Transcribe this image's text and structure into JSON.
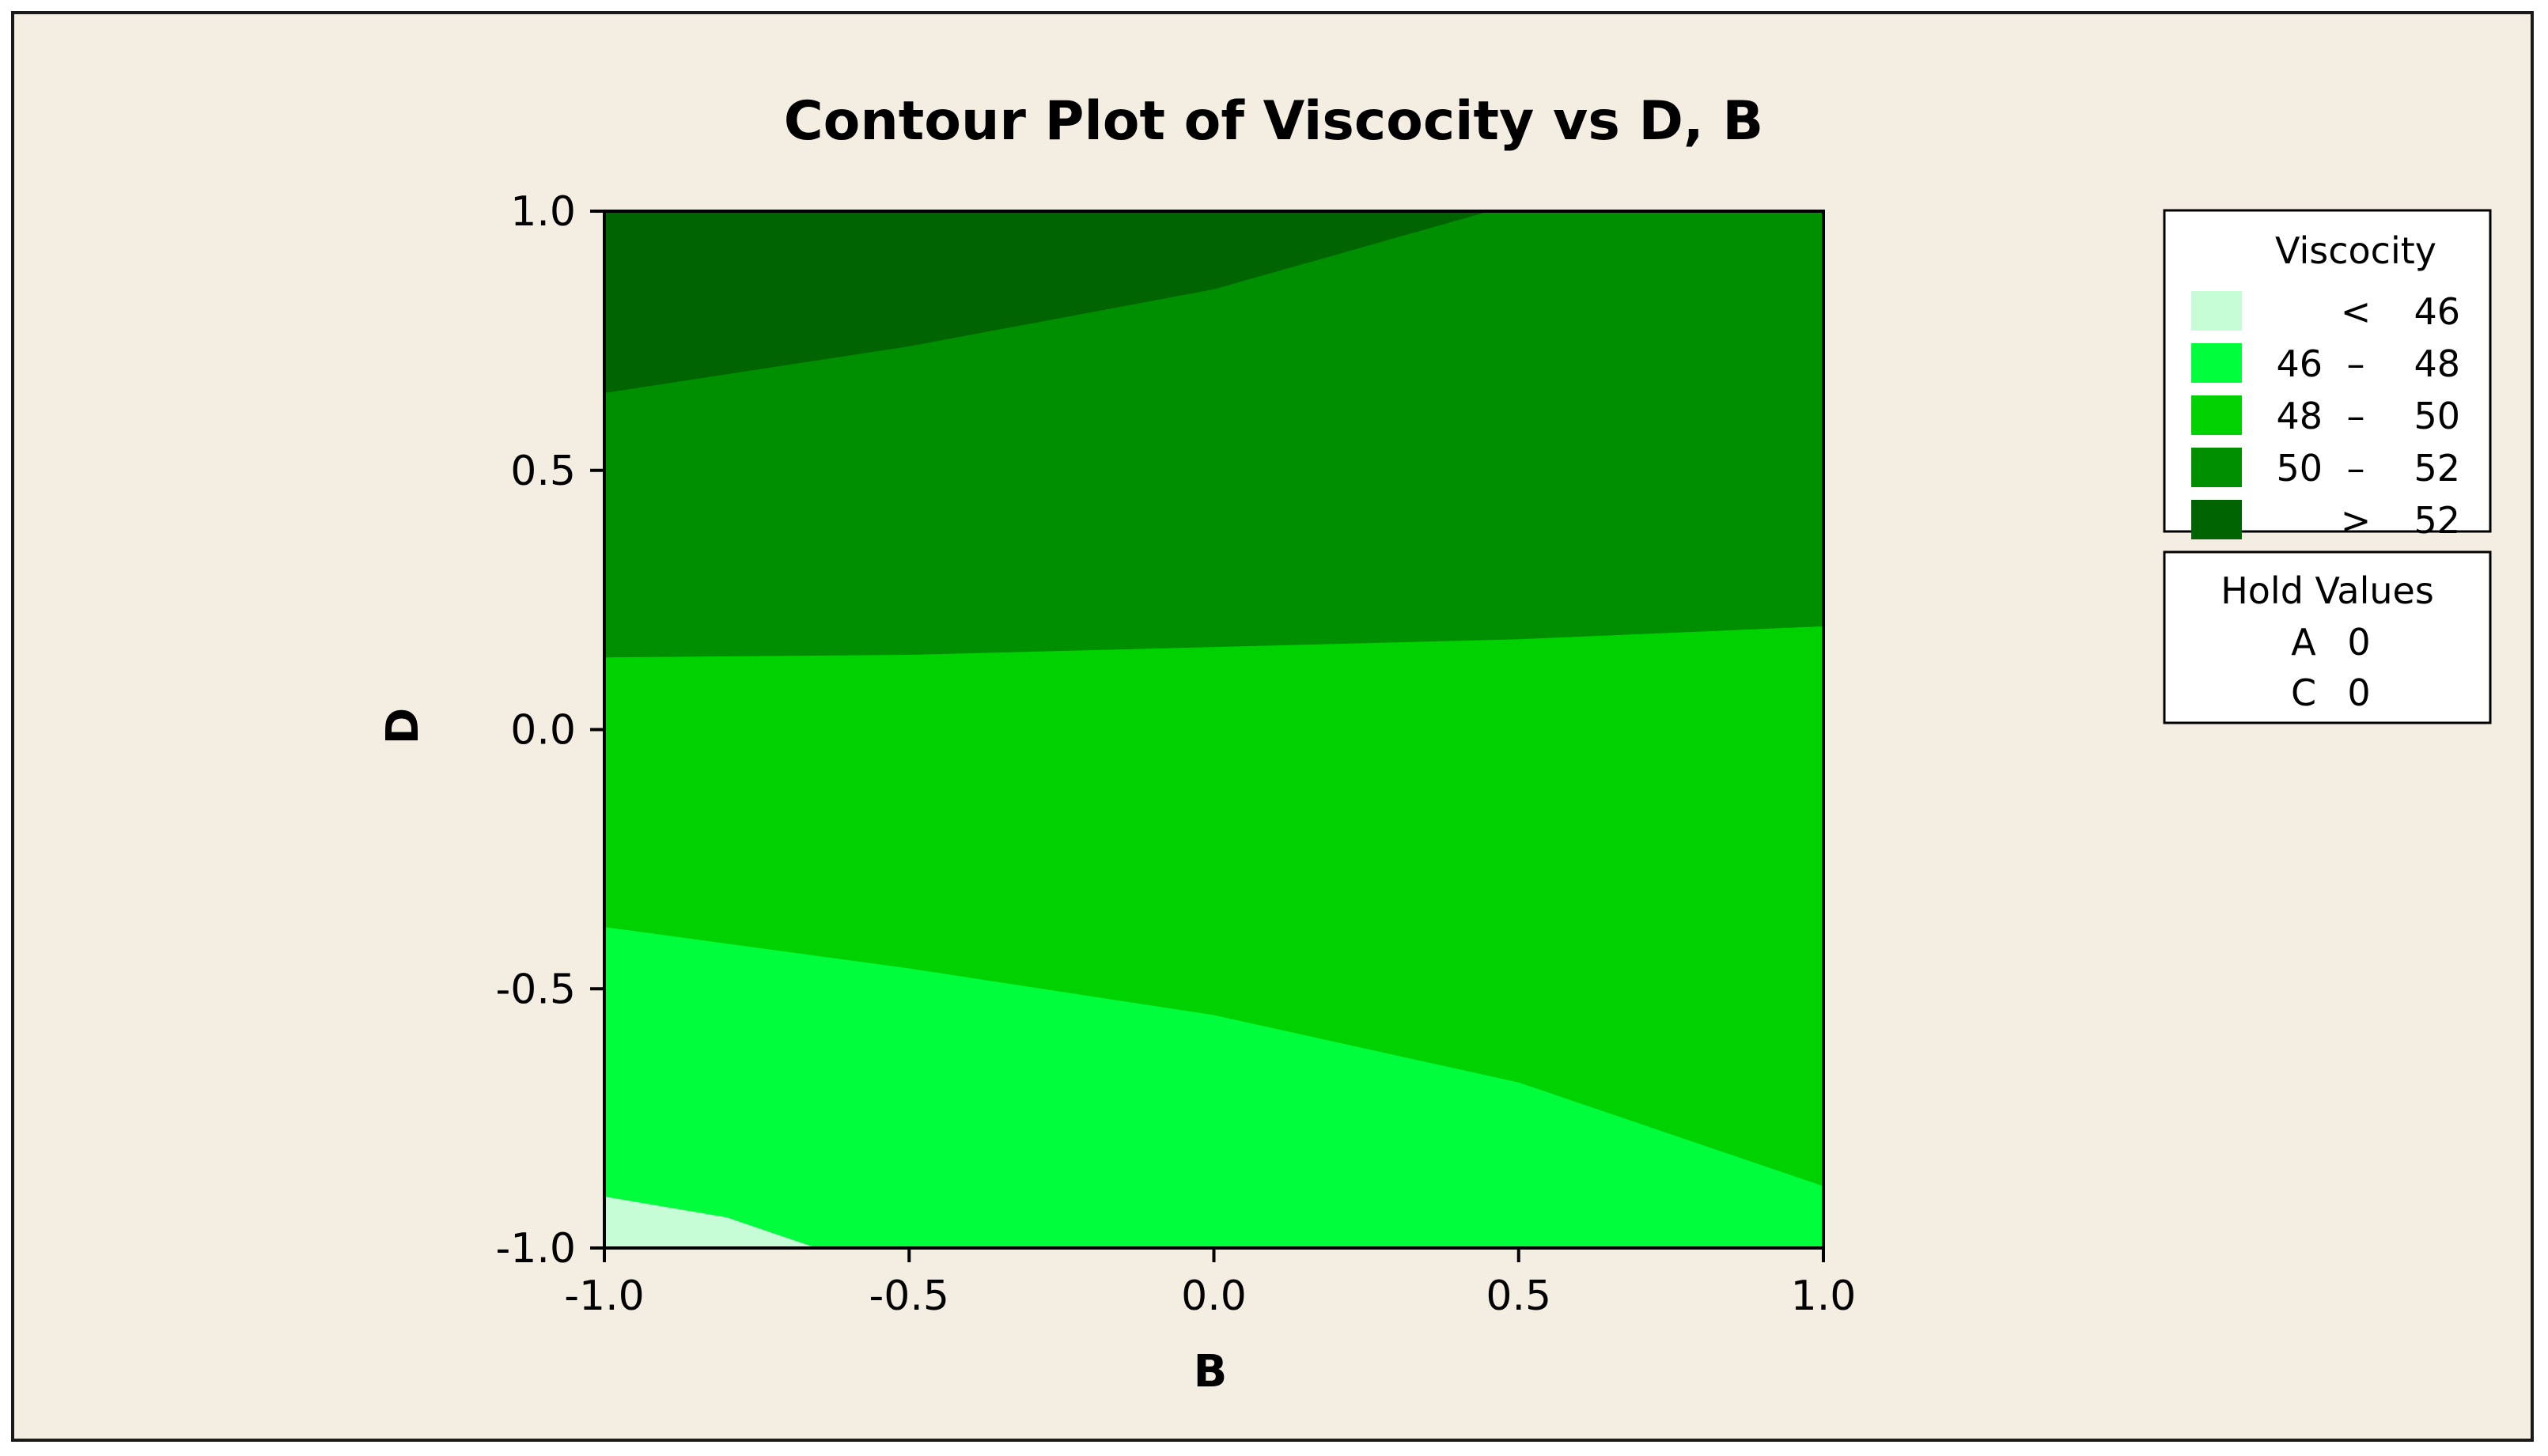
{
  "chart_data": {
    "type": "contour",
    "title": "Contour Plot of Viscocity vs D, B",
    "xlabel": "B",
    "ylabel": "D",
    "xlim": [
      -1.0,
      1.0
    ],
    "ylim": [
      -1.0,
      1.0
    ],
    "x_ticks": [
      "-1.0",
      "-0.5",
      "0.0",
      "0.5",
      "1.0"
    ],
    "y_ticks": [
      "-1.0",
      "-0.5",
      "0.0",
      "0.5",
      "1.0"
    ],
    "levels": [
      {
        "range": "< 46",
        "low_text": "",
        "sep": "<",
        "high_text": "46",
        "color": "#c6fcd6"
      },
      {
        "range": "46 - 48",
        "low_text": "46",
        "sep": "–",
        "high_text": "48",
        "color": "#00fe3c"
      },
      {
        "range": "48 - 50",
        "low_text": "48",
        "sep": "–",
        "high_text": "50",
        "color": "#00d100"
      },
      {
        "range": "50 - 52",
        "low_text": "50",
        "sep": "–",
        "high_text": "52",
        "color": "#008f00"
      },
      {
        "range": "> 52",
        "low_text": "",
        "sep": ">",
        "high_text": "52",
        "color": "#006400"
      }
    ],
    "contour_boundaries": [
      {
        "level": 46,
        "points": [
          [
            -1.0,
            -0.9
          ],
          [
            -0.8,
            -0.94
          ],
          [
            -0.65,
            -1.0
          ]
        ]
      },
      {
        "level": 48,
        "points": [
          [
            -1.0,
            -0.38
          ],
          [
            -0.5,
            -0.46
          ],
          [
            0.0,
            -0.55
          ],
          [
            0.5,
            -0.68
          ],
          [
            1.0,
            -0.88
          ]
        ]
      },
      {
        "level": 50,
        "points": [
          [
            -1.0,
            0.14
          ],
          [
            -0.5,
            0.145
          ],
          [
            0.0,
            0.16
          ],
          [
            0.5,
            0.175
          ],
          [
            1.0,
            0.2
          ]
        ]
      },
      {
        "level": 52,
        "points": [
          [
            -1.0,
            0.65
          ],
          [
            -0.5,
            0.74
          ],
          [
            0.0,
            0.85
          ],
          [
            0.3,
            0.95
          ],
          [
            0.45,
            1.0
          ]
        ]
      }
    ],
    "legend_title": "Viscocity",
    "legend_position": "right",
    "hold_values": {
      "title": "Hold Values",
      "items": [
        {
          "name": "A",
          "value": "0"
        },
        {
          "name": "C",
          "value": "0"
        }
      ]
    },
    "grid": false
  },
  "colors": {
    "background": "#f4ede1",
    "frame": "#1a1a1a",
    "axis": "#000000"
  }
}
